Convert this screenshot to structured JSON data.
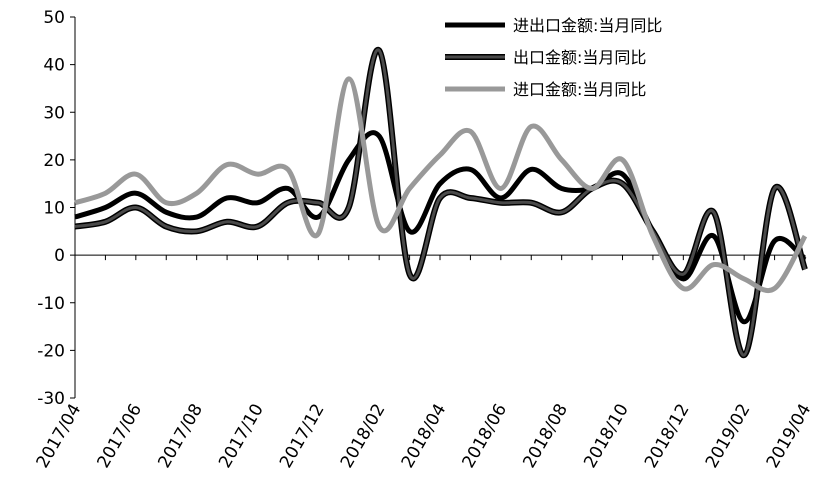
{
  "chart_data": {
    "type": "line",
    "categories": [
      "2017/04",
      null,
      "2017/06",
      null,
      "2017/08",
      null,
      "2017/10",
      null,
      "2017/12",
      null,
      "2018/02",
      null,
      "2018/04",
      null,
      "2018/06",
      null,
      "2018/08",
      null,
      "2018/10",
      null,
      "2018/12",
      null,
      "2019/02",
      null,
      "2019/04"
    ],
    "series": [
      {
        "name": "进出口金额:当月同比",
        "color": "#000000",
        "values": [
          8,
          10,
          13,
          9,
          8,
          12,
          11,
          14,
          8,
          20,
          25,
          5,
          15,
          18,
          12,
          18,
          14,
          14,
          17,
          5,
          -5,
          4,
          -14,
          3,
          -1
        ]
      },
      {
        "name": "出口金额:当月同比",
        "color": "#4a4a4a",
        "values": [
          6,
          7,
          10,
          6,
          5,
          7,
          6,
          11,
          11,
          10,
          43,
          -4,
          12,
          12,
          11,
          11,
          9,
          14,
          15,
          5,
          -4,
          9,
          -21,
          14,
          -3
        ]
      },
      {
        "name": "进口金额:当月同比",
        "color": "#999999",
        "values": [
          11,
          13,
          17,
          11,
          13,
          19,
          17,
          18,
          4.5,
          37,
          6,
          14,
          21,
          26,
          14,
          27,
          20,
          14,
          20,
          4,
          -7,
          -2,
          -5,
          -7,
          4
        ]
      }
    ],
    "ylim": [
      -30,
      50
    ],
    "yticks": [
      -30,
      -20,
      -10,
      0,
      10,
      20,
      30,
      40,
      50
    ],
    "legend": "top-right"
  }
}
